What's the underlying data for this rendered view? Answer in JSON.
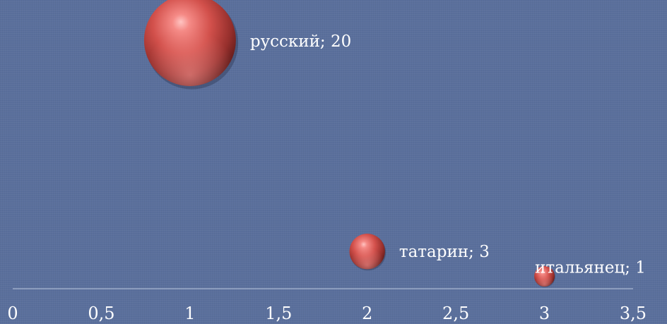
{
  "chart_data": {
    "type": "bubble",
    "title": "",
    "xlabel": "",
    "ylabel": "",
    "xlim": [
      0,
      3.5
    ],
    "x_ticks": [
      {
        "value": 0,
        "label": "0"
      },
      {
        "value": 0.5,
        "label": "0,5"
      },
      {
        "value": 1,
        "label": "1"
      },
      {
        "value": 1.5,
        "label": "1,5"
      },
      {
        "value": 2,
        "label": "2"
      },
      {
        "value": 2.5,
        "label": "2,5"
      },
      {
        "value": 3,
        "label": "3"
      },
      {
        "value": 3.5,
        "label": "3,5"
      }
    ],
    "y_axis_visible": false,
    "grid": false,
    "legend": "none",
    "points": [
      {
        "category": "русский",
        "x": 1,
        "y": 20,
        "size": 20,
        "label": "русский; 20"
      },
      {
        "category": "татарин",
        "x": 2,
        "y": 3,
        "size": 3,
        "label": "татарин; 3"
      },
      {
        "category": "итальянец",
        "x": 3,
        "y": 1,
        "size": 1,
        "label": "итальянец; 1"
      }
    ],
    "colors": {
      "background": "#5a6f9c",
      "bubble": "#c0504d",
      "axis": "#a9b6d2",
      "text": "#ffffff"
    }
  }
}
